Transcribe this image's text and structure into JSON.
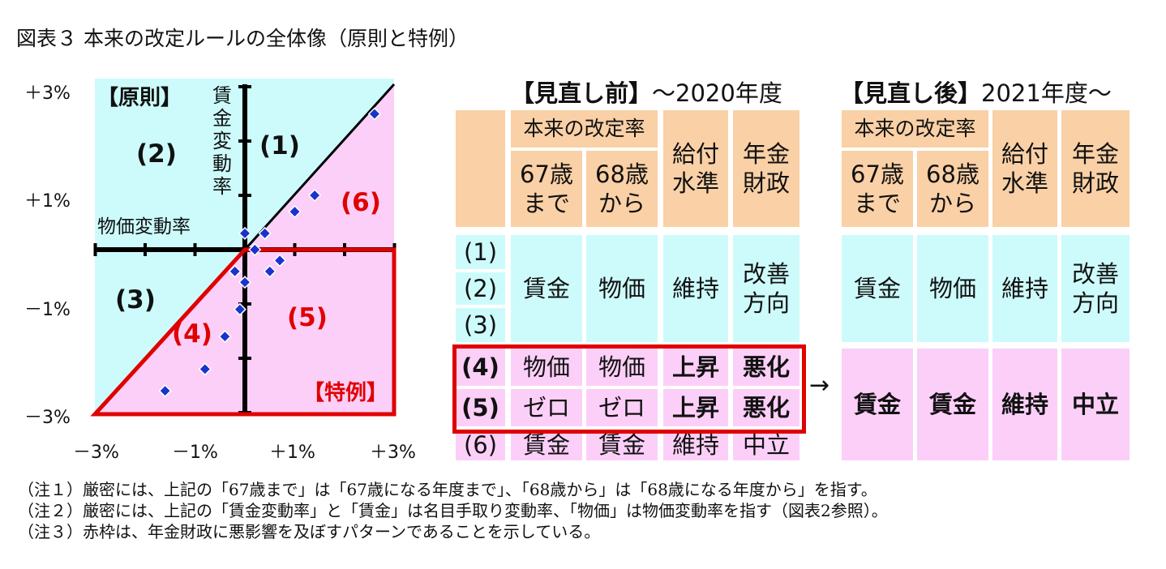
{
  "title": "図表３ 本来の改定ルールの全体像（原則と特例）",
  "diagram": {
    "y_ticks": [
      "＋3%",
      "＋1%",
      "－1%",
      "－3%"
    ],
    "x_ticks": [
      "－3%",
      "－1%",
      "＋1%",
      "＋3%"
    ],
    "labels": {
      "principle": "【原則】",
      "exception": "【特例】",
      "wage_axis": "賃金変動率",
      "price_axis": "物価変動率",
      "r1": "(1)",
      "r2": "(2)",
      "r3": "(3)",
      "r4": "(4)",
      "r5": "(5)",
      "r6": "(6)"
    },
    "points": [
      {
        "x": 2.6,
        "y": 2.5
      },
      {
        "x": 1.4,
        "y": 1.0
      },
      {
        "x": 1.0,
        "y": 0.7
      },
      {
        "x": 0.4,
        "y": 0.3
      },
      {
        "x": 0.0,
        "y": 0.3
      },
      {
        "x": 0.2,
        "y": 0.0
      },
      {
        "x": 0.7,
        "y": -0.2
      },
      {
        "x": 0.5,
        "y": -0.4
      },
      {
        "x": -0.2,
        "y": -0.4
      },
      {
        "x": 0.0,
        "y": -0.6
      },
      {
        "x": -0.1,
        "y": -1.1
      },
      {
        "x": -0.4,
        "y": -1.6
      },
      {
        "x": -0.8,
        "y": -2.2
      },
      {
        "x": -1.6,
        "y": -2.6
      }
    ],
    "colors": {
      "cyan": "#cdfafa",
      "pink": "#fccff8",
      "red": "#e00000",
      "marker": "#1a33cc"
    }
  },
  "before": {
    "heading_bracket": "【見直し前】",
    "heading_rest": "～2020年度",
    "col_group": "本来の改定率",
    "col_67": "67歳\nまで",
    "col_68": "68歳\nから",
    "col_benefit": "給付\n水準",
    "col_finance": "年金\n財政",
    "rows_label_123": [
      "(1)",
      "(2)",
      "(3)"
    ],
    "row123": {
      "v67": "賃金",
      "v68": "物価",
      "benefit": "維持",
      "finance": "改善\n方向"
    },
    "row4": {
      "label": "(4)",
      "v67": "物価",
      "v68": "物価",
      "benefit": "上昇",
      "finance": "悪化"
    },
    "row5": {
      "label": "(5)",
      "v67": "ゼロ",
      "v68": "ゼロ",
      "benefit": "上昇",
      "finance": "悪化"
    },
    "row6": {
      "label": "(6)",
      "v67": "賃金",
      "v68": "賃金",
      "benefit": "維持",
      "finance": "中立"
    }
  },
  "arrow": "→",
  "after": {
    "heading_bracket": "【見直し後】",
    "heading_rest": "2021年度～",
    "col_group": "本来の改定率",
    "col_67": "67歳\nまで",
    "col_68": "68歳\nから",
    "col_benefit": "給付\n水準",
    "col_finance": "年金\n財政",
    "row123": {
      "v67": "賃金",
      "v68": "物価",
      "benefit": "維持",
      "finance": "改善\n方向"
    },
    "row456": {
      "v67": "賃金",
      "v68": "賃金",
      "benefit": "維持",
      "finance": "中立"
    }
  },
  "notes": [
    "（注１）厳密には、上記の「67歳まで」は「67歳になる年度まで」、「68歳から」は「68歳になる年度から」を指す。",
    "（注２）厳密には、上記の「賃金変動率」と「賃金」は名目手取り変動率、「物価」は物価変動率を指す（図表2参照）。",
    "（注３）赤枠は、年金財政に悪影響を及ぼすパターンであることを示している。"
  ]
}
